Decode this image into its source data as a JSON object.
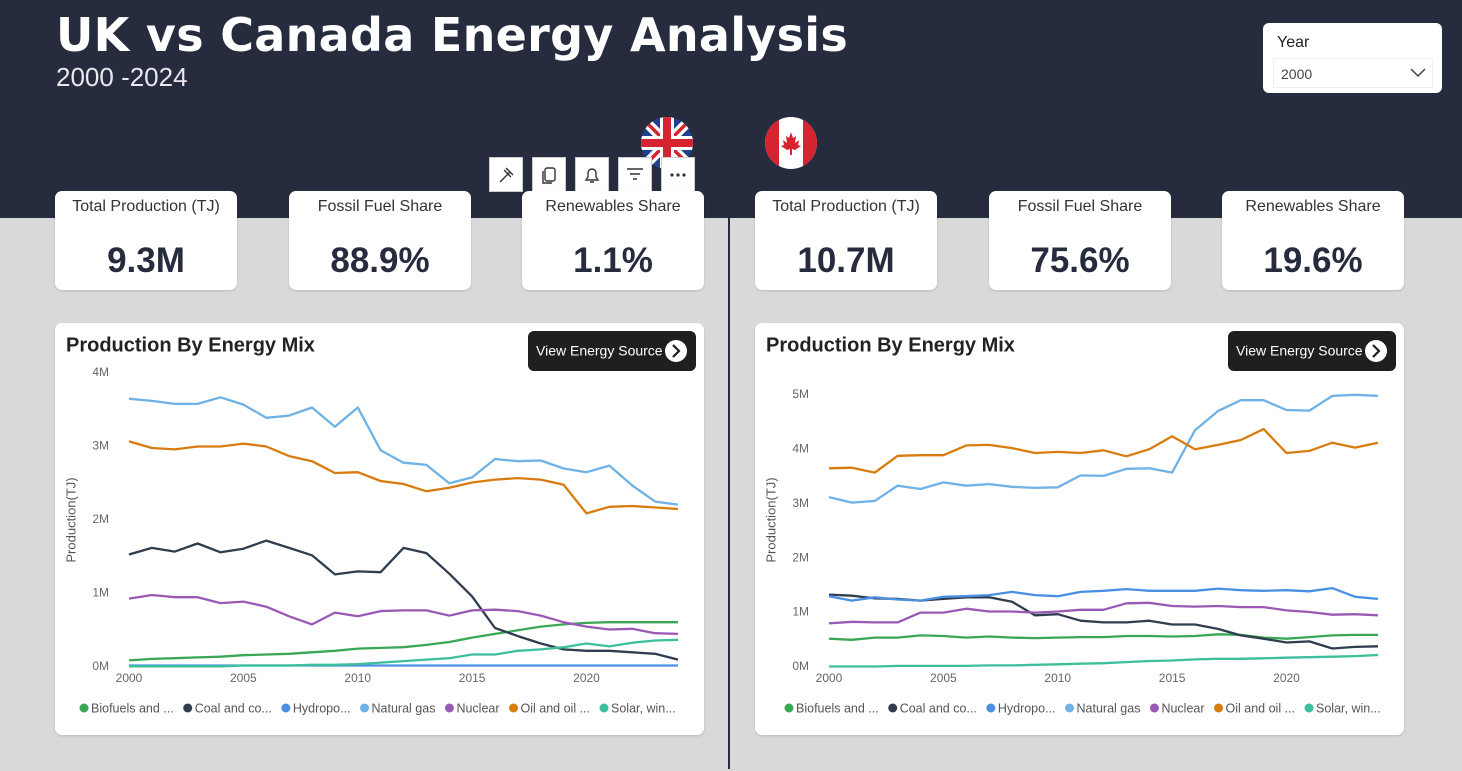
{
  "header": {
    "title": "UK vs Canada Energy Analysis",
    "subtitle": "2000 -2024"
  },
  "slicer": {
    "label": "Year",
    "value": "2000"
  },
  "kpis": [
    [
      {
        "label": "Total Production (TJ)",
        "value": "9.3M"
      },
      {
        "label": "Fossil Fuel Share",
        "value": "88.9%"
      },
      {
        "label": "Renewables Share",
        "value": "1.1%"
      }
    ],
    [
      {
        "label": "Total Production (TJ)",
        "value": "10.7M"
      },
      {
        "label": "Fossil Fuel Share",
        "value": "75.6%"
      },
      {
        "label": "Renewables Share",
        "value": "19.6%"
      }
    ]
  ],
  "buttons": [
    "View Energy Source",
    "View Energy Source"
  ],
  "chart_data": [
    {
      "type": "line",
      "title": "Production By Energy Mix",
      "y_label": "Production(TJ)",
      "grid": false,
      "x": [
        2000,
        2001,
        2002,
        2003,
        2004,
        2005,
        2006,
        2007,
        2008,
        2009,
        2010,
        2011,
        2012,
        2013,
        2014,
        2015,
        2016,
        2017,
        2018,
        2019,
        2020,
        2021,
        2022,
        2023,
        2024
      ],
      "xlim": [
        2000,
        2024
      ],
      "xticks": [
        2000,
        2005,
        2010,
        2015,
        2020
      ],
      "ylim": [
        0,
        4000000
      ],
      "yticks": [
        {
          "value": 0,
          "label": "0M"
        },
        {
          "value": 1000000,
          "label": "1M"
        },
        {
          "value": 2000000,
          "label": "2M"
        },
        {
          "value": 3000000,
          "label": "3M"
        },
        {
          "value": 4000000,
          "label": "4M"
        }
      ],
      "series": [
        {
          "name": "Biofuels and ...",
          "color": "#3aa757",
          "values": [
            90000,
            110000,
            120000,
            130000,
            140000,
            160000,
            170000,
            180000,
            200000,
            220000,
            250000,
            260000,
            270000,
            300000,
            340000,
            400000,
            450000,
            500000,
            550000,
            580000,
            600000,
            610000,
            610000,
            610000,
            610000
          ]
        },
        {
          "name": "Coal and co...",
          "color": "#2f3d4f",
          "values": [
            1530000,
            1620000,
            1570000,
            1680000,
            1560000,
            1610000,
            1720000,
            1620000,
            1520000,
            1260000,
            1300000,
            1290000,
            1620000,
            1550000,
            1270000,
            960000,
            530000,
            420000,
            320000,
            240000,
            220000,
            220000,
            200000,
            180000,
            100000
          ]
        },
        {
          "name": "Hydropo...",
          "color": "#4a90e2",
          "values": [
            20000,
            20000,
            20000,
            20000,
            20000,
            20000,
            20000,
            20000,
            20000,
            20000,
            20000,
            20000,
            20000,
            20000,
            20000,
            20000,
            20000,
            20000,
            20000,
            20000,
            20000,
            20000,
            20000,
            20000,
            20000
          ]
        },
        {
          "name": "Natural gas",
          "color": "#6fb2e6",
          "values": [
            3650000,
            3620000,
            3580000,
            3580000,
            3670000,
            3570000,
            3390000,
            3420000,
            3530000,
            3270000,
            3530000,
            2950000,
            2780000,
            2750000,
            2500000,
            2580000,
            2830000,
            2800000,
            2810000,
            2700000,
            2650000,
            2740000,
            2470000,
            2250000,
            2210000
          ]
        },
        {
          "name": "Nuclear",
          "color": "#9b59b6",
          "values": [
            930000,
            980000,
            950000,
            950000,
            870000,
            890000,
            820000,
            690000,
            580000,
            740000,
            690000,
            760000,
            770000,
            770000,
            700000,
            770000,
            780000,
            760000,
            700000,
            610000,
            550000,
            510000,
            520000,
            460000,
            450000
          ]
        },
        {
          "name": "Oil and oil ...",
          "color": "#d97c0f",
          "values": [
            3070000,
            2980000,
            2960000,
            3000000,
            3000000,
            3040000,
            3000000,
            2870000,
            2800000,
            2640000,
            2650000,
            2530000,
            2490000,
            2390000,
            2440000,
            2510000,
            2550000,
            2570000,
            2550000,
            2480000,
            2090000,
            2180000,
            2190000,
            2170000,
            2150000
          ]
        },
        {
          "name": "Solar, win...",
          "color": "#3cbf9a",
          "values": [
            10000,
            10000,
            10000,
            10000,
            10000,
            20000,
            20000,
            20000,
            30000,
            30000,
            40000,
            60000,
            80000,
            100000,
            120000,
            170000,
            170000,
            220000,
            240000,
            270000,
            320000,
            280000,
            330000,
            360000,
            370000
          ]
        }
      ]
    },
    {
      "type": "line",
      "title": "Production By Energy Mix",
      "y_label": "Production(TJ)",
      "grid": false,
      "x": [
        2000,
        2001,
        2002,
        2003,
        2004,
        2005,
        2006,
        2007,
        2008,
        2009,
        2010,
        2011,
        2012,
        2013,
        2014,
        2015,
        2016,
        2017,
        2018,
        2019,
        2020,
        2021,
        2022,
        2023,
        2024
      ],
      "xlim": [
        2000,
        2024
      ],
      "xticks": [
        2000,
        2005,
        2010,
        2015,
        2020
      ],
      "ylim": [
        0,
        5400000
      ],
      "yticks": [
        {
          "value": 0,
          "label": "0M"
        },
        {
          "value": 1000000,
          "label": "1M"
        },
        {
          "value": 2000000,
          "label": "2M"
        },
        {
          "value": 3000000,
          "label": "3M"
        },
        {
          "value": 4000000,
          "label": "4M"
        },
        {
          "value": 5000000,
          "label": "5M"
        }
      ],
      "series": [
        {
          "name": "Biofuels and ...",
          "color": "#3aa757",
          "values": [
            520000,
            500000,
            540000,
            540000,
            580000,
            570000,
            540000,
            560000,
            540000,
            530000,
            540000,
            550000,
            550000,
            570000,
            570000,
            560000,
            570000,
            600000,
            590000,
            540000,
            520000,
            550000,
            580000,
            590000,
            590000
          ]
        },
        {
          "name": "Coal and co...",
          "color": "#2f3d4f",
          "values": [
            1330000,
            1310000,
            1260000,
            1250000,
            1220000,
            1250000,
            1280000,
            1280000,
            1200000,
            950000,
            970000,
            850000,
            820000,
            820000,
            850000,
            780000,
            780000,
            700000,
            580000,
            520000,
            450000,
            470000,
            340000,
            370000,
            380000
          ]
        },
        {
          "name": "Hydropo...",
          "color": "#4a90e2",
          "values": [
            1300000,
            1220000,
            1280000,
            1240000,
            1220000,
            1290000,
            1300000,
            1320000,
            1380000,
            1320000,
            1300000,
            1380000,
            1400000,
            1430000,
            1400000,
            1400000,
            1400000,
            1440000,
            1410000,
            1400000,
            1410000,
            1390000,
            1450000,
            1290000,
            1250000
          ]
        },
        {
          "name": "Natural gas",
          "color": "#6fb2e6",
          "values": [
            3120000,
            3020000,
            3050000,
            3330000,
            3270000,
            3390000,
            3330000,
            3360000,
            3310000,
            3290000,
            3300000,
            3520000,
            3510000,
            3640000,
            3650000,
            3570000,
            4350000,
            4700000,
            4900000,
            4900000,
            4720000,
            4710000,
            4980000,
            5000000,
            4980000
          ]
        },
        {
          "name": "Nuclear",
          "color": "#9b59b6",
          "values": [
            800000,
            830000,
            820000,
            820000,
            1000000,
            1000000,
            1070000,
            1020000,
            1020000,
            1000000,
            1020000,
            1050000,
            1050000,
            1170000,
            1180000,
            1120000,
            1110000,
            1120000,
            1100000,
            1100000,
            1040000,
            1010000,
            960000,
            970000,
            950000
          ]
        },
        {
          "name": "Oil and oil ...",
          "color": "#d97c0f",
          "values": [
            3650000,
            3660000,
            3570000,
            3880000,
            3890000,
            3890000,
            4070000,
            4080000,
            4020000,
            3930000,
            3950000,
            3930000,
            3980000,
            3870000,
            4000000,
            4240000,
            4000000,
            4080000,
            4170000,
            4370000,
            3930000,
            3970000,
            4120000,
            4030000,
            4120000
          ]
        },
        {
          "name": "Solar, win...",
          "color": "#3cbf9a",
          "values": [
            10000,
            10000,
            10000,
            20000,
            20000,
            20000,
            20000,
            30000,
            30000,
            40000,
            50000,
            60000,
            70000,
            90000,
            110000,
            120000,
            140000,
            150000,
            150000,
            160000,
            170000,
            180000,
            190000,
            200000,
            220000
          ]
        }
      ]
    }
  ]
}
